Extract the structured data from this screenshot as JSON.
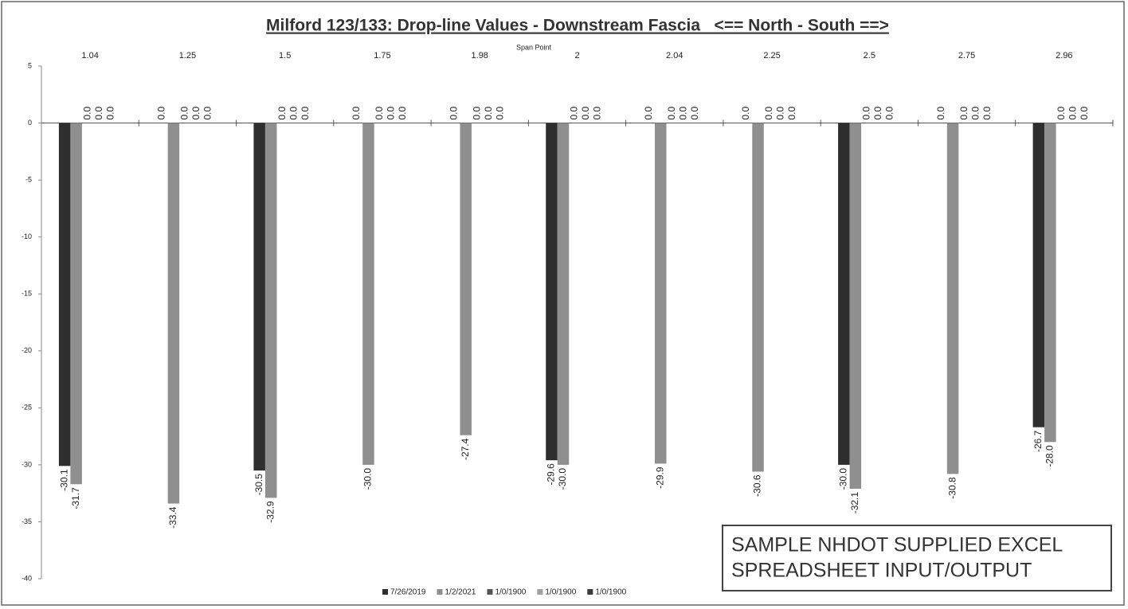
{
  "chart_data": {
    "type": "bar",
    "title": "Milford 123/133: Drop-line Values - Downstream Fascia   <== North - South ==>",
    "x_label": "Span Point",
    "categories": [
      "1.04",
      "1.25",
      "1.5",
      "1.75",
      "1.98",
      "2",
      "2.04",
      "2.25",
      "2.5",
      "2.75",
      "2.96"
    ],
    "series": [
      {
        "name": "7/26/2019",
        "color": "#2e2e2e",
        "values": [
          -30.1,
          0,
          -30.5,
          0,
          0,
          -29.6,
          0,
          0,
          -30.0,
          0,
          -26.7
        ],
        "value_labels": [
          "-30.1",
          "0.0",
          "-30.5",
          "0.0",
          "0.0",
          "-29.6",
          "0.0",
          "0.0",
          "-30.0",
          "0.0",
          "-26.7"
        ]
      },
      {
        "name": "1/2/2021",
        "color": "#8f8f8f",
        "values": [
          -31.7,
          -33.4,
          -32.9,
          -30.0,
          -27.4,
          -30.0,
          -29.9,
          -30.6,
          -32.1,
          -30.8,
          -28.0
        ],
        "value_labels": [
          "-31.7",
          "-33.4",
          "-32.9",
          "-30.0",
          "-27.4",
          "-30.0",
          "-29.9",
          "-30.6",
          "-32.1",
          "-30.8",
          "-28.0"
        ]
      },
      {
        "name": "1/0/1900",
        "color": "#555555",
        "values": [
          0,
          0,
          0,
          0,
          0,
          0,
          0,
          0,
          0,
          0,
          0
        ],
        "value_labels": [
          "0.0",
          "0.0",
          "0.0",
          "0.0",
          "0.0",
          "0.0",
          "0.0",
          "0.0",
          "0.0",
          "0.0",
          "0.0"
        ]
      },
      {
        "name": "1/0/1900",
        "color": "#a0a0a0",
        "values": [
          0,
          0,
          0,
          0,
          0,
          0,
          0,
          0,
          0,
          0,
          0
        ],
        "value_labels": [
          "0.0",
          "0.0",
          "0.0",
          "0.0",
          "0.0",
          "0.0",
          "0.0",
          "0.0",
          "0.0",
          "0.0",
          "0.0"
        ]
      },
      {
        "name": "1/0/1900",
        "color": "#3a3a3a",
        "values": [
          0,
          0,
          0,
          0,
          0,
          0,
          0,
          0,
          0,
          0,
          0
        ],
        "value_labels": [
          "0.0",
          "0.0",
          "0.0",
          "0.0",
          "0.0",
          "0.0",
          "0.0",
          "0.0",
          "0.0",
          "0.0",
          "0.0"
        ]
      }
    ],
    "ylim": [
      -40,
      5
    ],
    "yticks": [
      5,
      0,
      -5,
      -10,
      -15,
      -20,
      -25,
      -30,
      -35,
      -40
    ],
    "grid": false,
    "legend": "bottom",
    "annotation": [
      "SAMPLE NHDOT SUPPLIED EXCEL",
      "SPREADSHEET INPUT/OUTPUT"
    ]
  }
}
